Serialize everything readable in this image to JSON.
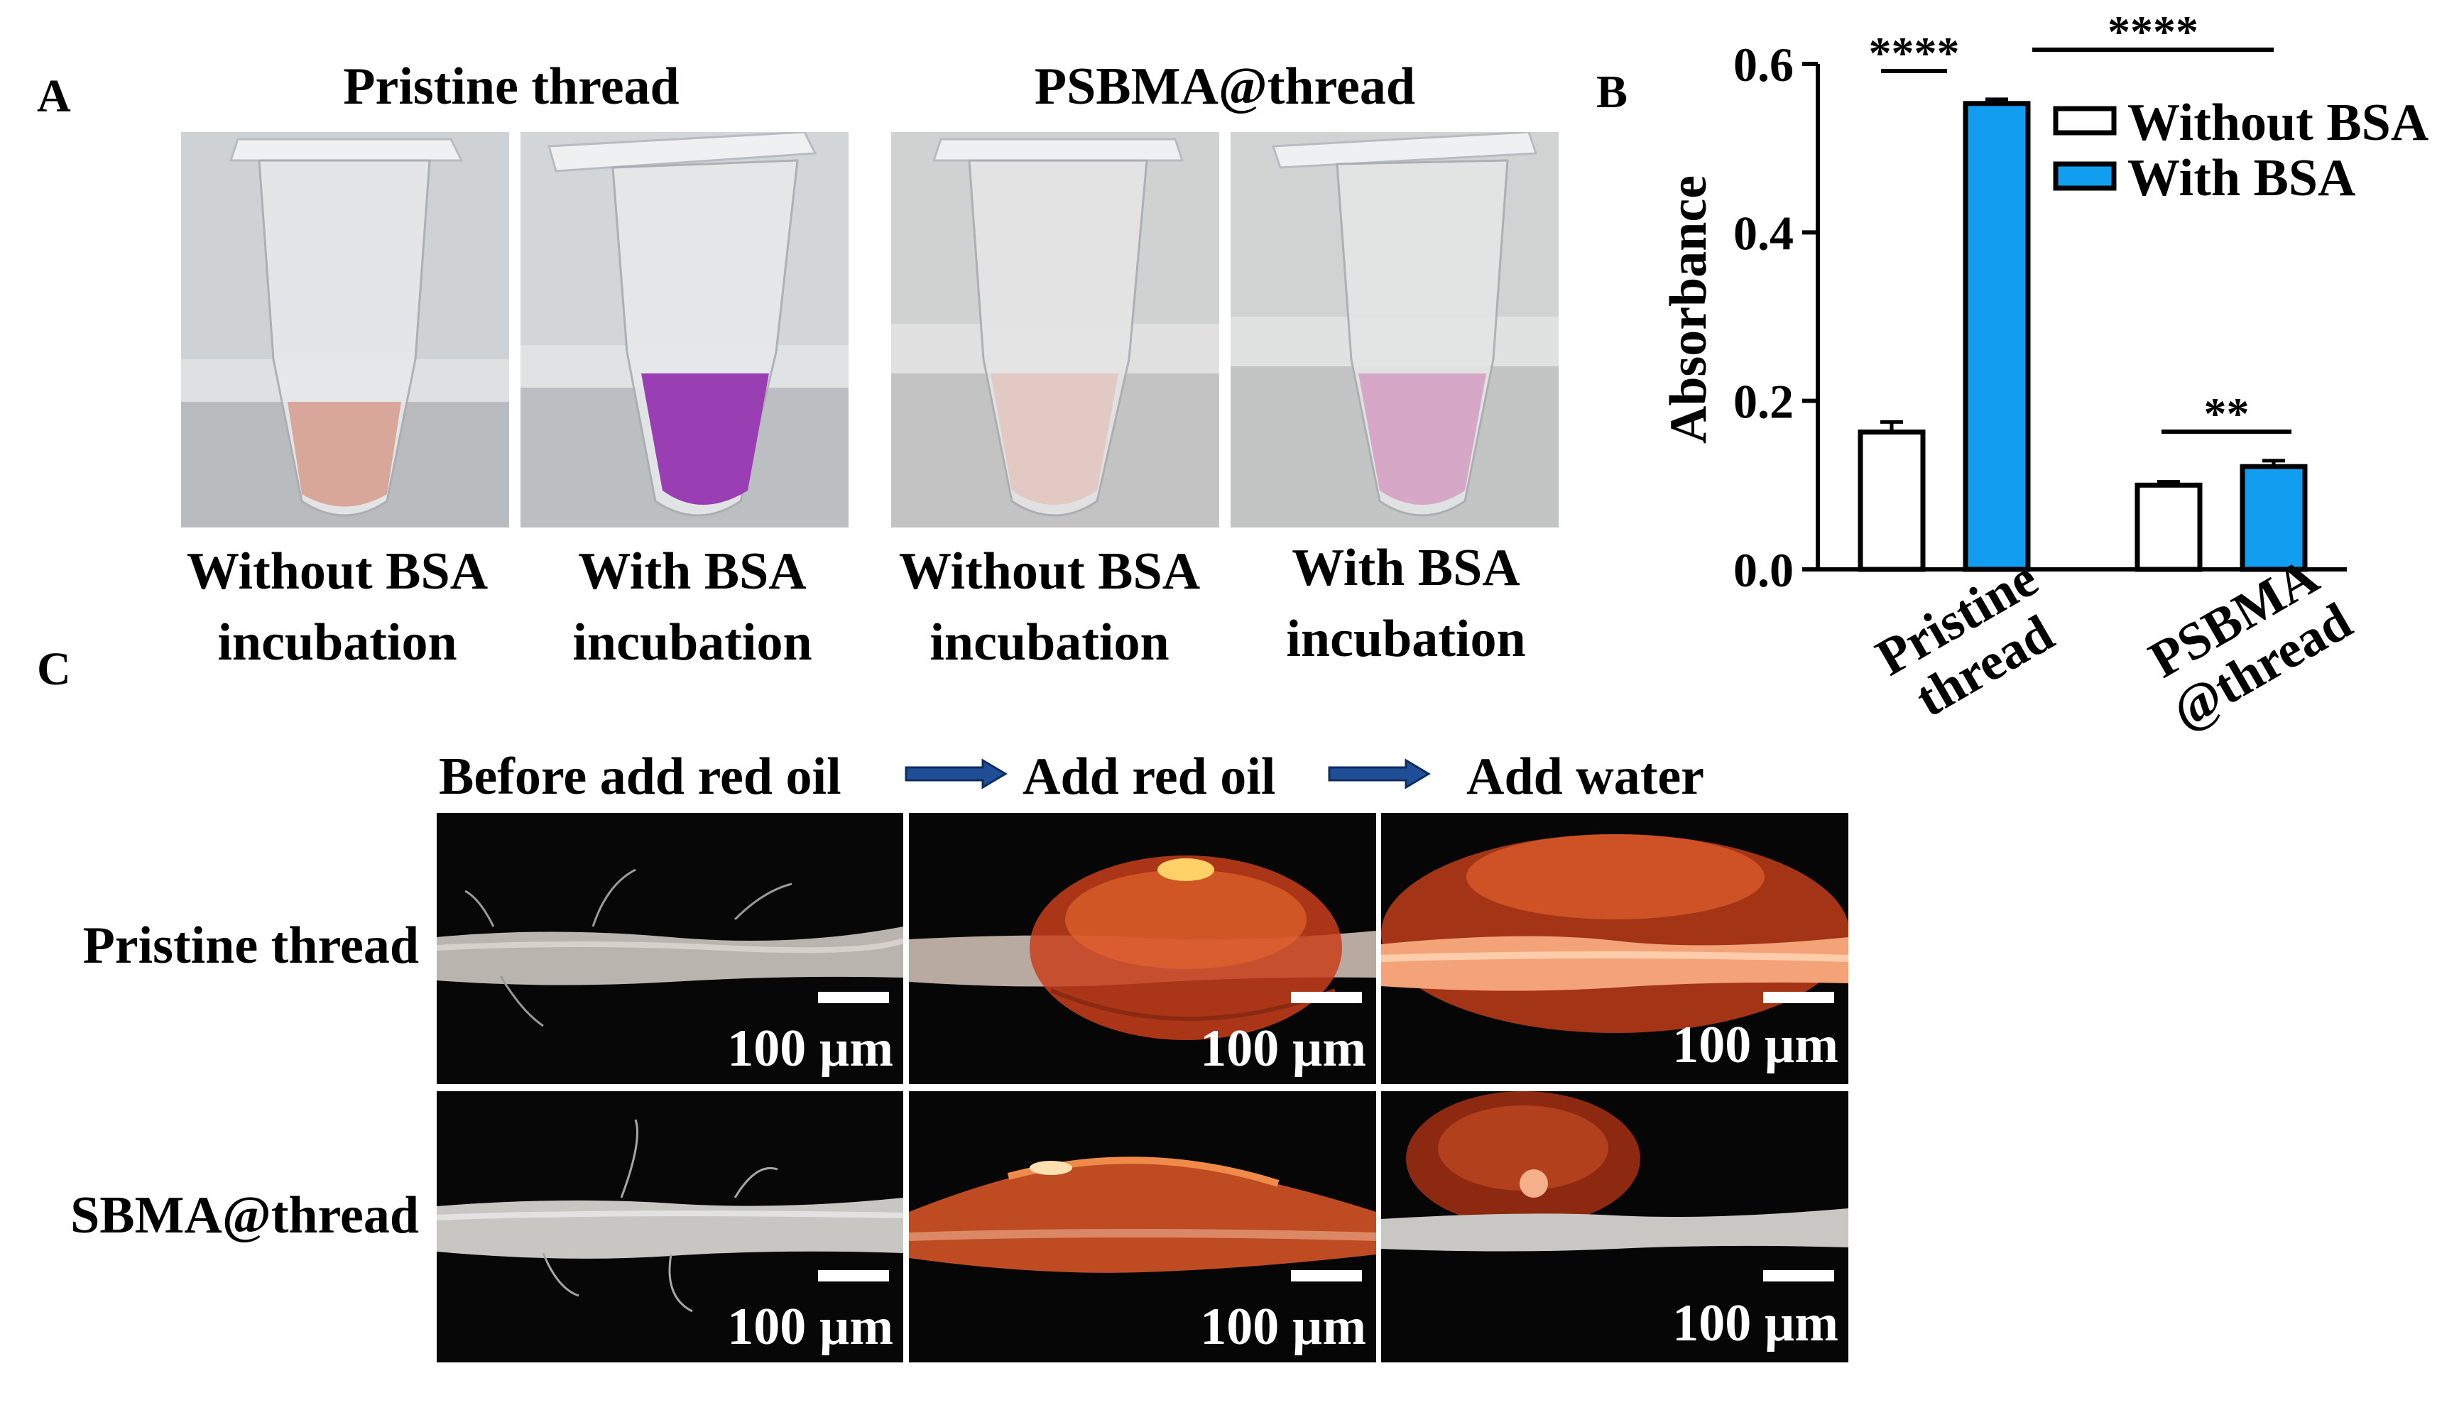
{
  "panel_a": {
    "letter": "A",
    "group_titles": [
      "Pristine thread",
      "PSBMA@thread"
    ],
    "tubes": [
      {
        "line1": "Without BSA",
        "line2": "incubation",
        "liquid_color": "#d8a79a"
      },
      {
        "line1": "With BSA",
        "line2": "incubation",
        "liquid_color": "#9a3fb3"
      },
      {
        "line1": "Without BSA",
        "line2": "incubation",
        "liquid_color": "#e2c9c4"
      },
      {
        "line1": "With BSA",
        "line2": "incubation",
        "liquid_color": "#d6a7c6"
      }
    ]
  },
  "panel_b": {
    "letter": "B",
    "chart_data": {
      "type": "bar",
      "categories": [
        "Pristine thread",
        "PSBMA @thread"
      ],
      "category_lines": [
        [
          "Pristine",
          "thread"
        ],
        [
          "PSBMA",
          "@thread"
        ]
      ],
      "series": [
        {
          "name": "Without BSA",
          "values": [
            0.163,
            0.1
          ],
          "errors": [
            0.012,
            0.004
          ],
          "color": "#ffffff"
        },
        {
          "name": "With BSA",
          "values": [
            0.553,
            0.122
          ],
          "errors": [
            0.005,
            0.007
          ],
          "color": "#119df0"
        }
      ],
      "ylabel": "Absorbance",
      "ylim": [
        0,
        0.6
      ],
      "yticks": [
        "0.0",
        "0.2",
        "0.4",
        "0.6"
      ],
      "significance": [
        {
          "label": "****",
          "between": "Pristine thread: Without BSA vs With BSA"
        },
        {
          "label": "****",
          "between": "With BSA: Pristine thread vs PSBMA @thread"
        },
        {
          "label": "**",
          "between": "PSBMA @thread: Without BSA vs With BSA"
        }
      ],
      "legend_position": "top-right"
    }
  },
  "panel_c": {
    "letter": "C",
    "column_titles": [
      "Before add red oil",
      "Add red oil",
      "Add water"
    ],
    "arrow_color": "#1f4e96",
    "row_labels": [
      "Pristine thread",
      "SBMA@thread"
    ],
    "scale_label": "100 µm"
  }
}
